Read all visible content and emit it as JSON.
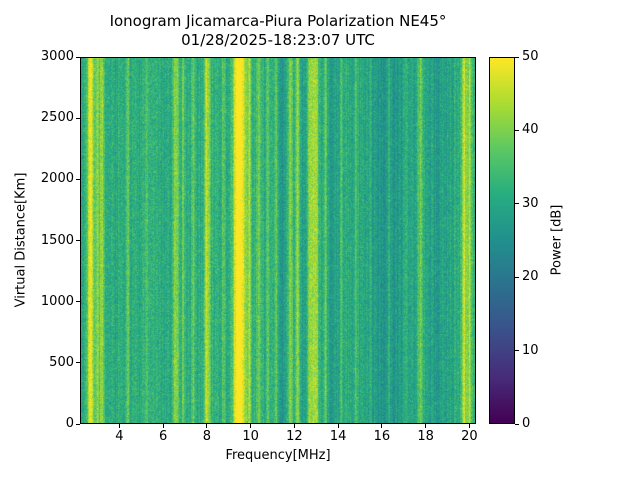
{
  "figure": {
    "kind": "matplotlib-style ionogram heatmap"
  },
  "chart_data": {
    "type": "heatmap",
    "title": "Ionogram Jicamarca-Piura Polarization NE45°",
    "subtitle": "01/28/2025-18:23:07 UTC",
    "xlabel": "Frequency[MHz]",
    "ylabel": "Virtual Distance[Km]",
    "xlim": [
      2.2,
      20.3
    ],
    "ylim": [
      0,
      3000
    ],
    "xticks": [
      4,
      6,
      8,
      10,
      12,
      14,
      16,
      18,
      20
    ],
    "yticks": [
      0,
      500,
      1000,
      1500,
      2000,
      2500,
      3000
    ],
    "grid": false,
    "legend": "none",
    "colorbar": {
      "label": "Power [dB]",
      "min": 0,
      "max": 50,
      "ticks": [
        0,
        10,
        20,
        30,
        40,
        50
      ],
      "colormap": "viridis",
      "position": "right"
    },
    "background_power_db": {
      "mean": 31,
      "noise": 6,
      "column_streak_noise": 2.5
    },
    "bright_bands_mhz": [
      {
        "mhz": 2.65,
        "width": 0.12,
        "boost": 17
      },
      {
        "mhz": 2.95,
        "width": 0.06,
        "boost": 10
      },
      {
        "mhz": 3.15,
        "width": 0.07,
        "boost": 12
      },
      {
        "mhz": 4.35,
        "width": 0.06,
        "boost": 8
      },
      {
        "mhz": 5.2,
        "width": 0.05,
        "boost": 6
      },
      {
        "mhz": 6.55,
        "width": 0.1,
        "boost": 12
      },
      {
        "mhz": 6.9,
        "width": 0.05,
        "boost": 8
      },
      {
        "mhz": 7.35,
        "width": 0.05,
        "boost": 8
      },
      {
        "mhz": 8.0,
        "width": 0.1,
        "boost": 14
      },
      {
        "mhz": 8.75,
        "width": 0.05,
        "boost": 7
      },
      {
        "mhz": 9.35,
        "width": 0.12,
        "boost": 16
      },
      {
        "mhz": 9.6,
        "width": 0.18,
        "boost": 18
      },
      {
        "mhz": 9.95,
        "width": 0.07,
        "boost": 10
      },
      {
        "mhz": 10.35,
        "width": 0.06,
        "boost": 9
      },
      {
        "mhz": 10.8,
        "width": 0.05,
        "boost": 8
      },
      {
        "mhz": 11.15,
        "width": 0.06,
        "boost": 9
      },
      {
        "mhz": 11.8,
        "width": 0.1,
        "boost": 11
      },
      {
        "mhz": 12.15,
        "width": 0.08,
        "boost": 10
      },
      {
        "mhz": 12.75,
        "width": 0.12,
        "boost": 14
      },
      {
        "mhz": 13.0,
        "width": 0.08,
        "boost": 12
      },
      {
        "mhz": 13.45,
        "width": 0.05,
        "boost": 8
      },
      {
        "mhz": 14.15,
        "width": 0.05,
        "boost": 6
      },
      {
        "mhz": 14.85,
        "width": 0.05,
        "boost": 6
      },
      {
        "mhz": 15.5,
        "width": 0.05,
        "boost": 5
      },
      {
        "mhz": 16.35,
        "width": 0.05,
        "boost": 5
      },
      {
        "mhz": 17.1,
        "width": 0.05,
        "boost": 5
      },
      {
        "mhz": 17.8,
        "width": 0.07,
        "boost": 9
      },
      {
        "mhz": 19.8,
        "width": 0.08,
        "boost": 14
      },
      {
        "mhz": 20.05,
        "width": 0.08,
        "boost": 13
      }
    ],
    "dark_bands_mhz": [
      {
        "mhz": 11.5,
        "width": 0.25,
        "drop": 5
      },
      {
        "mhz": 12.45,
        "width": 0.15,
        "drop": 4
      },
      {
        "mhz": 13.8,
        "width": 0.3,
        "drop": 3
      },
      {
        "mhz": 15.9,
        "width": 0.5,
        "drop": 4
      },
      {
        "mhz": 16.8,
        "width": 0.4,
        "drop": 3
      },
      {
        "mhz": 18.6,
        "width": 0.4,
        "drop": 3
      }
    ]
  }
}
